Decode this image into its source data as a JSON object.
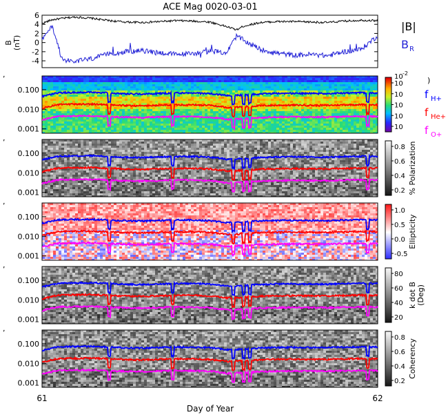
{
  "title": "ACE Mag 0020-03-01",
  "xlabel": "Day of Year",
  "x_ticks": [
    "61",
    "62"
  ],
  "colors": {
    "b_total": "#000000",
    "b_r": "#1f1fd6",
    "f_h": "#0000ff",
    "f_he": "#ff0000",
    "f_o": "#ff00ff"
  },
  "panels": [
    {
      "id": "mag",
      "ylabel": "B",
      "ylabel2": "(nT)",
      "y_ticks": [
        "6",
        "4",
        "2",
        "0",
        "-2",
        "-4"
      ],
      "legend": [
        {
          "label": "|B|",
          "sub": "",
          "color": "#000000"
        },
        {
          "label": "B",
          "sub": "R",
          "color": "#1f1fd6"
        }
      ]
    },
    {
      "id": "power",
      "ylabel": "",
      "y_ticks": [
        "0.100",
        "0.010",
        "0.001"
      ],
      "colorbar": {
        "type": "rainbow",
        "labels": [
          "10",
          "10",
          "10",
          "10",
          "10"
        ],
        "top_label": "10",
        "top_exp": "-2",
        "suffix": ")",
        "title": ""
      },
      "legend": [
        {
          "label": "f",
          "sub": "H+",
          "color": "#0000ff"
        },
        {
          "label": "f",
          "sub": "He+",
          "color": "#ff0000"
        },
        {
          "label": "f",
          "sub": "O+",
          "color": "#ff00ff"
        }
      ]
    },
    {
      "id": "polarization",
      "y_ticks": [
        "0.100",
        "0.010",
        "0.001"
      ],
      "colorbar": {
        "type": "gray",
        "labels": [
          "0.8",
          "0.6",
          "0.4",
          "0.2"
        ],
        "title": "% Polarization"
      }
    },
    {
      "id": "ellipticity",
      "y_ticks": [
        "0.100",
        "0.010",
        "0.001"
      ],
      "colorbar": {
        "type": "bwr",
        "labels": [
          "1.0",
          "0.5",
          "0.0",
          "-0.5"
        ],
        "title": "Ellipticity"
      }
    },
    {
      "id": "kdotb",
      "y_ticks": [
        "0.100",
        "0.010",
        "0.001"
      ],
      "colorbar": {
        "type": "gray",
        "labels": [
          "80",
          "60",
          "40",
          "20"
        ],
        "title": "k dot B",
        "title2": "(Deg)"
      }
    },
    {
      "id": "coherency",
      "y_ticks": [
        "0.100",
        "0.010",
        "0.001"
      ],
      "colorbar": {
        "type": "gray",
        "labels": [
          "0.8",
          "0.6",
          "0.4",
          "0.2"
        ],
        "title": "Coherency"
      }
    }
  ],
  "chart_data": {
    "type": "line",
    "title": "ACE Mag 0020-03-01",
    "xlabel": "Day of Year",
    "xlim": [
      61,
      62
    ],
    "mag": {
      "ylabel": "B (nT)",
      "ylim": [
        -5.5,
        6
      ],
      "x": [
        61.0,
        61.03,
        61.06,
        61.1,
        61.15,
        61.2,
        61.25,
        61.3,
        61.35,
        61.4,
        61.45,
        61.5,
        61.55,
        61.58,
        61.6,
        61.65,
        61.7,
        61.75,
        61.8,
        61.85,
        61.9,
        61.95,
        62.0
      ],
      "series": [
        {
          "name": "|B|",
          "values": [
            4.2,
            5.0,
            5.3,
            5.6,
            5.3,
            4.8,
            4.5,
            4.4,
            4.6,
            4.8,
            4.7,
            4.5,
            3.5,
            2.8,
            3.6,
            4.4,
            4.6,
            4.6,
            4.5,
            4.4,
            4.7,
            4.9,
            4.8
          ]
        },
        {
          "name": "B_R",
          "values": [
            0.5,
            3.8,
            -3.8,
            -4.1,
            -3.5,
            -2.5,
            -2.0,
            -1.8,
            -2.2,
            -2.6,
            -2.4,
            -1.9,
            -2.2,
            1.5,
            0.5,
            -1.5,
            -2.3,
            -2.8,
            -2.6,
            -2.9,
            -2.0,
            -1.5,
            1.5
          ]
        }
      ]
    },
    "frequency_ylim": [
      0.0006,
      0.5
    ],
    "frequency_series": {
      "x": [
        61.0,
        61.05,
        61.1,
        61.15,
        61.2,
        61.25,
        61.3,
        61.35,
        61.4,
        61.45,
        61.5,
        61.55,
        61.6,
        61.65,
        61.7,
        61.75,
        61.8,
        61.85,
        61.9,
        61.95,
        62.0
      ],
      "f_H": [
        0.045,
        0.07,
        0.072,
        0.074,
        0.067,
        0.062,
        0.06,
        0.064,
        0.068,
        0.067,
        0.063,
        0.05,
        0.053,
        0.061,
        0.064,
        0.065,
        0.064,
        0.063,
        0.067,
        0.069,
        0.068
      ],
      "f_He": [
        0.011,
        0.0175,
        0.018,
        0.0185,
        0.0168,
        0.0155,
        0.015,
        0.016,
        0.017,
        0.0168,
        0.0158,
        0.0125,
        0.0133,
        0.0153,
        0.016,
        0.0163,
        0.016,
        0.0158,
        0.0168,
        0.0173,
        0.017
      ],
      "f_O": [
        0.0028,
        0.0044,
        0.0045,
        0.0046,
        0.0042,
        0.0039,
        0.0038,
        0.004,
        0.0043,
        0.0042,
        0.004,
        0.0031,
        0.0033,
        0.0038,
        0.004,
        0.0041,
        0.004,
        0.004,
        0.0042,
        0.0043,
        0.0043
      ]
    },
    "dips": [
      61.2,
      61.39,
      61.57,
      61.6,
      61.62,
      61.97
    ]
  }
}
